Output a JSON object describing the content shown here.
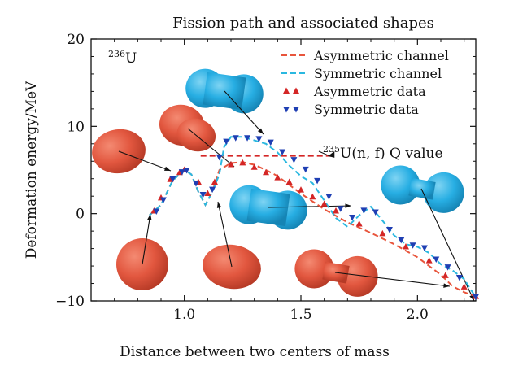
{
  "chart_data": {
    "type": "line",
    "title": "Fission path and associated shapes",
    "xlabel": "Distance between two centers of mass",
    "ylabel": "Deformation energy/MeV",
    "nucleus_label": {
      "sup": "236",
      "base": "U"
    },
    "xlim": [
      0.6,
      2.25
    ],
    "ylim": [
      -10,
      20
    ],
    "xticks": [
      1.0,
      1.5,
      2.0
    ],
    "xtick_labels": [
      "1.0",
      "1.5",
      "2.0"
    ],
    "yticks": [
      -10,
      0,
      10,
      20
    ],
    "ytick_labels": [
      "−10",
      "0",
      "10",
      "20"
    ],
    "legend_position": "top-right",
    "grid": false,
    "q_value": {
      "y": 6.6,
      "x_range": [
        1.07,
        1.63
      ],
      "label_sup": "235",
      "label_rest": "U(n, f) Q value"
    },
    "series": [
      {
        "name": "Asymmetric channel",
        "style": "dashed",
        "color": "#e8553c",
        "x": [
          0.85,
          0.9,
          0.95,
          1.0,
          1.03,
          1.06,
          1.09,
          1.12,
          1.15,
          1.2,
          1.25,
          1.3,
          1.35,
          1.4,
          1.5,
          1.6,
          1.7,
          1.8,
          1.9,
          2.0,
          2.1,
          2.15,
          2.2,
          2.25
        ],
        "y": [
          -0.2,
          1.0,
          3.8,
          5.0,
          4.5,
          2.5,
          1.0,
          2.5,
          5.0,
          5.8,
          5.9,
          5.6,
          5.0,
          4.3,
          2.3,
          0.5,
          -1.0,
          -2.2,
          -3.5,
          -5.0,
          -7.0,
          -8.3,
          -9.0,
          -9.5
        ]
      },
      {
        "name": "Symmetric channel",
        "style": "dashed",
        "color": "#2ab8e0",
        "x": [
          0.85,
          0.9,
          0.95,
          1.0,
          1.03,
          1.06,
          1.09,
          1.12,
          1.15,
          1.17,
          1.2,
          1.25,
          1.35,
          1.4,
          1.45,
          1.5,
          1.55,
          1.6,
          1.65,
          1.7,
          1.75,
          1.8,
          1.85,
          1.9,
          1.95,
          2.0,
          2.05,
          2.1,
          2.15,
          2.2,
          2.25
        ],
        "y": [
          -0.2,
          1.0,
          3.8,
          5.0,
          4.5,
          2.5,
          1.0,
          2.5,
          4.5,
          7.6,
          8.8,
          8.8,
          8.0,
          7.0,
          5.5,
          4.3,
          3.5,
          1.5,
          -0.5,
          -1.5,
          -0.2,
          0.8,
          -0.8,
          -2.5,
          -3.5,
          -3.8,
          -4.5,
          -5.8,
          -6.5,
          -7.5,
          -9.6
        ]
      },
      {
        "name": "Asymmetric data",
        "marker": "triangle-up",
        "color": "#d42626",
        "x": [
          0.87,
          0.9,
          0.94,
          0.98,
          1.0,
          1.06,
          1.1,
          1.13,
          1.2,
          1.25,
          1.3,
          1.35,
          1.4,
          1.45,
          1.5,
          1.55,
          1.6,
          1.65,
          1.75,
          1.85,
          1.95,
          2.05,
          2.12,
          2.2,
          2.25
        ],
        "y": [
          0.3,
          1.8,
          3.9,
          4.7,
          5.0,
          3.6,
          2.3,
          3.6,
          5.6,
          5.8,
          5.3,
          4.7,
          4.1,
          3.6,
          2.7,
          1.9,
          1.1,
          0.3,
          -1.2,
          -2.3,
          -3.8,
          -5.4,
          -7.1,
          -8.4,
          -9.5
        ]
      },
      {
        "name": "Symmetric data",
        "marker": "triangle-down",
        "color": "#1f3fb3",
        "x": [
          0.88,
          0.91,
          0.95,
          0.99,
          1.01,
          1.05,
          1.08,
          1.12,
          1.15,
          1.18,
          1.22,
          1.27,
          1.32,
          1.37,
          1.42,
          1.47,
          1.52,
          1.57,
          1.62,
          1.67,
          1.72,
          1.77,
          1.82,
          1.88,
          1.93,
          1.98,
          2.03,
          2.08,
          2.13,
          2.18,
          2.25
        ],
        "y": [
          0.3,
          1.6,
          4.0,
          4.8,
          5.0,
          3.5,
          2.2,
          2.8,
          6.5,
          8.3,
          8.7,
          8.7,
          8.6,
          8.2,
          7.1,
          6.2,
          5.1,
          3.8,
          2.0,
          0.6,
          -0.4,
          0.4,
          0.2,
          -1.8,
          -3.0,
          -3.6,
          -3.9,
          -5.2,
          -6.1,
          -7.3,
          -9.5
        ]
      }
    ],
    "shapes": [
      {
        "kind": "sphere",
        "color": "#e2573f",
        "target": [
          0.87,
          0.0
        ]
      },
      {
        "kind": "oblate",
        "color": "#e2573f",
        "target": [
          0.99,
          4.9
        ]
      },
      {
        "kind": "oval",
        "color": "#e2573f",
        "target": [
          1.13,
          1.8
        ]
      },
      {
        "kind": "pear",
        "color": "#e2573f",
        "target": [
          1.24,
          5.8
        ]
      },
      {
        "kind": "capsule",
        "color": "#27aee3",
        "target": [
          1.35,
          8.6
        ]
      },
      {
        "kind": "capsule",
        "color": "#27aee3",
        "target": [
          1.82,
          0.8
        ]
      },
      {
        "kind": "dumbbell",
        "color": "#e2573f",
        "target": [
          2.15,
          -8.4
        ]
      },
      {
        "kind": "dumbbell",
        "color": "#27aee3",
        "target": [
          2.25,
          -9.6
        ]
      }
    ]
  }
}
